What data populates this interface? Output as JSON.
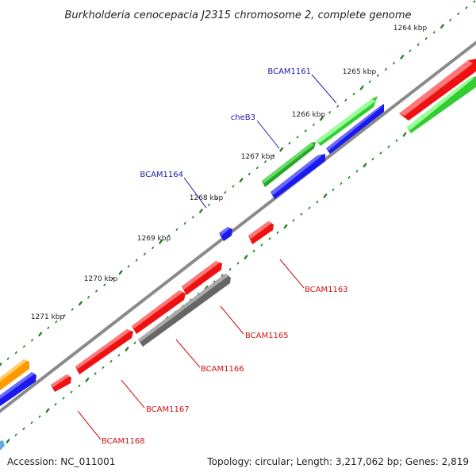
{
  "title": "Burkholderia cenocepacia J2315 chromosome 2, complete genome",
  "footer": {
    "accession": "Accession: NC_011001",
    "summary": "Topology: circular; Length: 3,217,062 bp; Genes: 2,819"
  },
  "colors": {
    "backbone": "#888888",
    "tick": "#1a7a1a",
    "forward_label": "#1a1aa8",
    "reverse_label": "#cc1111",
    "red": "#ee1111",
    "green": "#33cc33",
    "blue": "#1a1aee",
    "gray": "#666666",
    "orange": "#ff9900"
  },
  "ticks": [
    "1264 kbp",
    "1265 kbp",
    "1266 kbp",
    "1267 kbp",
    "1268 kbp",
    "1269 kbp",
    "1270 kbp",
    "1271 kbp"
  ],
  "gene_labels": [
    "BCAM1161",
    "cheB3",
    "BCAM1164",
    "BCAM1163",
    "BCAM1165",
    "BCAM1166",
    "BCAM1167",
    "BCAM1168"
  ]
}
